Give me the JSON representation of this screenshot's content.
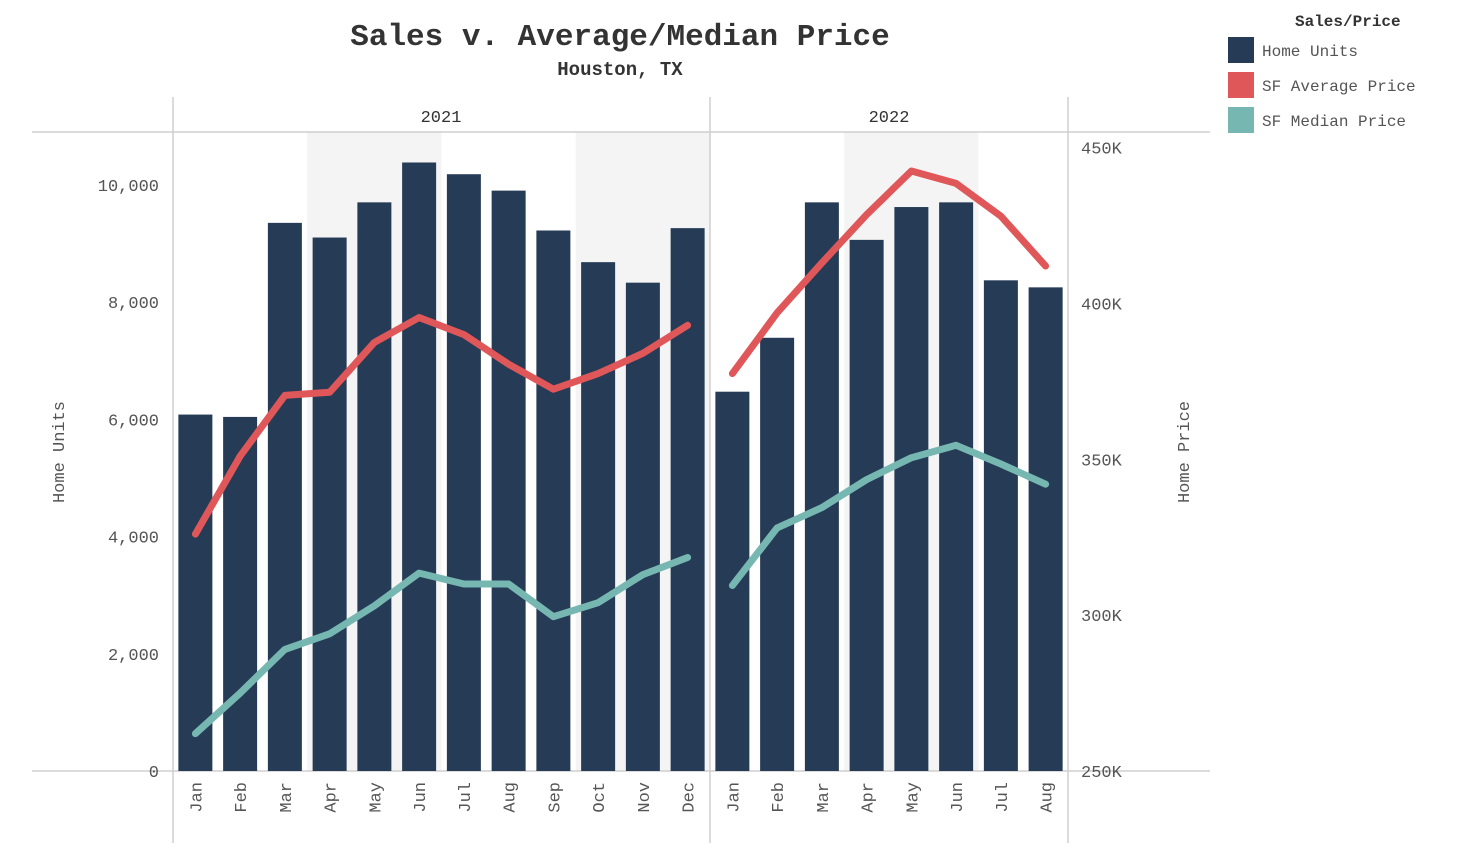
{
  "chart_data": {
    "type": "bar",
    "title": "Sales v. Average/Median Price",
    "subtitle": "Houston, TX",
    "panels": [
      {
        "label": "2021",
        "months": [
          "Jan",
          "Feb",
          "Mar",
          "Apr",
          "May",
          "Jun",
          "Jul",
          "Aug",
          "Sep",
          "Oct",
          "Nov",
          "Dec"
        ]
      },
      {
        "label": "2022",
        "months": [
          "Jan",
          "Feb",
          "Mar",
          "Apr",
          "May",
          "Jun",
          "Jul",
          "Aug"
        ]
      }
    ],
    "y_left": {
      "label": "Home Units",
      "range": [
        0,
        10900
      ],
      "ticks": [
        0,
        2000,
        4000,
        6000,
        8000,
        10000
      ],
      "tick_labels": [
        "0",
        "2,000",
        "4,000",
        "6,000",
        "8,000",
        "10,000"
      ]
    },
    "y_right": {
      "label": "Home Price",
      "range": [
        250000,
        455000
      ],
      "ticks": [
        250000,
        300000,
        350000,
        400000,
        450000
      ],
      "tick_labels": [
        "250K",
        "300K",
        "350K",
        "400K",
        "450K"
      ]
    },
    "series": [
      {
        "name": "Home Units",
        "type": "bar",
        "color": "#263b55",
        "axis": "left",
        "values": [
          6080,
          6040,
          9350,
          9100,
          9700,
          10380,
          10180,
          9900,
          9220,
          8680,
          8330,
          9260,
          6470,
          7390,
          9700,
          9060,
          9620,
          9700,
          8370,
          8250
        ]
      },
      {
        "name": "SF Average Price",
        "type": "line",
        "color": "#e05759",
        "axis": "right",
        "values": [
          326000,
          351000,
          370500,
          371500,
          387500,
          395500,
          390000,
          380500,
          372500,
          377500,
          384000,
          393000,
          377500,
          397000,
          413000,
          428500,
          442500,
          438500,
          428000,
          412000
        ]
      },
      {
        "name": "SF Median Price",
        "type": "line",
        "color": "#76b7b2",
        "axis": "right",
        "values": [
          262000,
          275000,
          289000,
          294000,
          303000,
          313500,
          310000,
          310000,
          299500,
          304000,
          313000,
          318500,
          309500,
          328000,
          334500,
          343500,
          350500,
          354500,
          348500,
          342000
        ]
      }
    ],
    "legend": {
      "title": "Sales/Price",
      "position": "top-right",
      "items": [
        {
          "label": "Home Units",
          "color": "#263b55"
        },
        {
          "label": "SF Average Price",
          "color": "#e05759"
        },
        {
          "label": "SF Median Price",
          "color": "#76b7b2"
        }
      ]
    },
    "shaded_bands": [
      {
        "panel": 0,
        "from": "Apr",
        "to": "Jun"
      },
      {
        "panel": 0,
        "from": "Oct",
        "to": "Dec"
      },
      {
        "panel": 1,
        "from": "Apr",
        "to": "Jun"
      }
    ]
  }
}
